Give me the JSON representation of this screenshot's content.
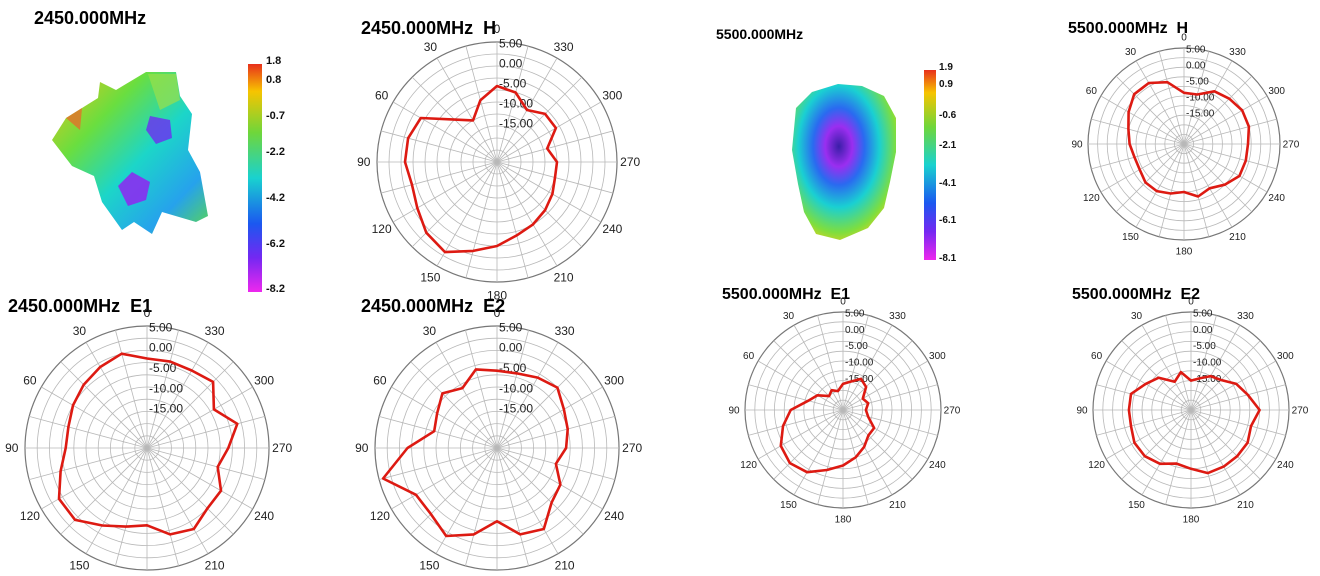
{
  "chart_data": [
    {
      "type": "surface-3d",
      "title": "2450.000MHz",
      "colorbar_labels": [
        "1.8",
        "0.8",
        "-0.7",
        "-2.2",
        "-4.2",
        "-6.2",
        "-8.2"
      ],
      "colorbar_values": [
        1.8,
        0.8,
        -0.7,
        -2.2,
        -4.2,
        -6.2,
        -8.2
      ],
      "range": [
        -8.2,
        1.8
      ]
    },
    {
      "type": "polar",
      "title": "2450.000MHz  H",
      "angle_labels": [
        "0",
        "30",
        "60",
        "90",
        "120",
        "150",
        "180",
        "210",
        "240",
        "270",
        "300",
        "330"
      ],
      "radial_labels": [
        "5.00",
        "0.00",
        "-5.00",
        "-10.00",
        "-15.00"
      ],
      "rlim": [
        -25,
        5
      ],
      "series": [
        {
          "angles": [
            0,
            15,
            30,
            45,
            60,
            75,
            90,
            105,
            120,
            135,
            150,
            165,
            180,
            195,
            210,
            225,
            240,
            255,
            270,
            285,
            300,
            315,
            330,
            345
          ],
          "values": [
            -6,
            -9,
            -13,
            -10,
            -3,
            -2,
            -2,
            -3,
            -2,
            0,
            1,
            -2,
            -4,
            -6,
            -7,
            -8,
            -9,
            -10,
            -10,
            -12,
            -8,
            -8,
            -10,
            -7
          ]
        }
      ]
    },
    {
      "type": "surface-3d",
      "title": "5500.000MHz",
      "colorbar_labels": [
        "1.9",
        "0.9",
        "-0.6",
        "-2.1",
        "-4.1",
        "-6.1",
        "-8.1"
      ],
      "colorbar_values": [
        1.9,
        0.9,
        -0.6,
        -2.1,
        -4.1,
        -6.1,
        -8.1
      ],
      "range": [
        -8.1,
        1.9
      ]
    },
    {
      "type": "polar",
      "title": "5500.000MHz  H",
      "angle_labels": [
        "0",
        "30",
        "60",
        "90",
        "120",
        "150",
        "180",
        "210",
        "240",
        "270",
        "300",
        "330"
      ],
      "radial_labels": [
        "5.00",
        "0.00",
        "-5.00",
        "-10.00",
        "-15.00"
      ],
      "rlim": [
        -25,
        5
      ],
      "series": [
        {
          "angles": [
            0,
            15,
            30,
            45,
            60,
            75,
            90,
            105,
            120,
            135,
            150,
            165,
            180,
            195,
            210,
            225,
            240,
            255,
            270,
            285,
            300,
            315,
            330,
            345
          ],
          "values": [
            -9,
            -5,
            -3,
            -3,
            -5,
            -7,
            -8,
            -9,
            -9,
            -8,
            -8,
            -9,
            -10,
            -8,
            -9,
            -7,
            -5,
            -5,
            -5,
            -4,
            -4,
            -5,
            -6,
            -9
          ]
        }
      ]
    },
    {
      "type": "polar",
      "title": "2450.000MHz  E1",
      "angle_labels": [
        "0",
        "30",
        "60",
        "90",
        "120",
        "150",
        "180",
        "210",
        "240",
        "270",
        "300",
        "330"
      ],
      "radial_labels": [
        "5.00",
        "0.00",
        "-5.00",
        "-10.00",
        "-15.00"
      ],
      "rlim": [
        -25,
        5
      ],
      "series": [
        {
          "angles": [
            0,
            15,
            30,
            45,
            60,
            75,
            90,
            105,
            120,
            135,
            150,
            165,
            180,
            195,
            210,
            225,
            240,
            255,
            270,
            285,
            300,
            315,
            330,
            345
          ],
          "values": [
            -3,
            -1,
            -2,
            -3,
            -4,
            -5,
            -5,
            -3,
            0,
            0,
            -3,
            -5,
            -6,
            -3,
            -2,
            -4,
            -4,
            -7,
            -5,
            -2,
            -6,
            -2,
            -3,
            -3
          ]
        }
      ]
    },
    {
      "type": "polar",
      "title": "2450.000MHz  E2",
      "angle_labels": [
        "0",
        "30",
        "60",
        "90",
        "120",
        "150",
        "180",
        "210",
        "240",
        "270",
        "300",
        "330"
      ],
      "radial_labels": [
        "5.00",
        "0.00",
        "-5.00",
        "-10.00",
        "-15.00"
      ],
      "rlim": [
        -25,
        5
      ],
      "series": [
        {
          "angles": [
            0,
            15,
            30,
            45,
            60,
            75,
            90,
            105,
            120,
            135,
            150,
            165,
            180,
            195,
            210,
            225,
            240,
            255,
            270,
            285,
            300,
            315,
            330,
            345
          ],
          "values": [
            -6,
            -5,
            -8,
            -6,
            -8,
            -9,
            -3,
            4,
            -2,
            -2,
            0,
            -3,
            -7,
            -3,
            -2,
            -6,
            -7,
            -10,
            -8,
            -7,
            -6,
            -4,
            -5,
            -6
          ]
        }
      ]
    },
    {
      "type": "polar",
      "title": "5500.000MHz  E1",
      "angle_labels": [
        "0",
        "30",
        "60",
        "90",
        "120",
        "150",
        "180",
        "210",
        "240",
        "270",
        "300",
        "330"
      ],
      "radial_labels": [
        "5.00",
        "0.00",
        "-5.00",
        "-10.00",
        "-15.00"
      ],
      "rlim": [
        -25,
        5
      ],
      "series": [
        {
          "angles": [
            0,
            15,
            30,
            45,
            60,
            75,
            90,
            105,
            120,
            135,
            150,
            165,
            180,
            195,
            210,
            225,
            240,
            255,
            270,
            285,
            300,
            315,
            330,
            345
          ],
          "values": [
            -17,
            -19,
            -18,
            -19,
            -16,
            -14,
            -9,
            -6,
            -3,
            -2,
            -3,
            -6,
            -8,
            -10,
            -12,
            -14,
            -14,
            -17,
            -18,
            -17,
            -18,
            -15,
            -14,
            -16
          ]
        }
      ]
    },
    {
      "type": "polar",
      "title": "5500.000MHz  E2",
      "angle_labels": [
        "0",
        "30",
        "60",
        "90",
        "120",
        "150",
        "180",
        "210",
        "240",
        "270",
        "300",
        "330"
      ],
      "radial_labels": [
        "5.00",
        "0.00",
        "-5.00",
        "-10.00",
        "-15.00"
      ],
      "rlim": [
        -25,
        5
      ],
      "series": [
        {
          "angles": [
            0,
            15,
            30,
            45,
            60,
            75,
            90,
            105,
            120,
            135,
            150,
            165,
            180,
            195,
            210,
            225,
            240,
            255,
            270,
            285,
            300,
            315,
            330,
            345
          ],
          "values": [
            -16,
            -13,
            -15,
            -11,
            -9,
            -6,
            -6,
            -6,
            -5,
            -5,
            -6,
            -8,
            -7,
            -5,
            -5,
            -5,
            -5,
            -6,
            -4,
            -7,
            -9,
            -12,
            -13,
            -15
          ]
        }
      ]
    }
  ]
}
